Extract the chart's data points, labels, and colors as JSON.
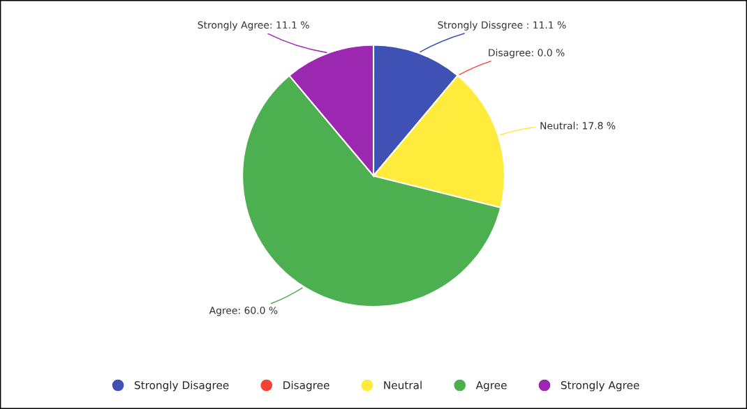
{
  "chart_data": {
    "type": "pie",
    "categories": [
      "Strongly Disagree",
      "Disagree",
      "Neutral",
      "Agree",
      "Strongly Agree"
    ],
    "values": [
      11.1,
      0.0,
      17.8,
      60.0,
      11.1
    ],
    "colors": [
      "#3f51b5",
      "#f44336",
      "#ffeb3b",
      "#4caf50",
      "#9c27b0"
    ],
    "value_labels": [
      "Strongly Dissgree : 11.1 %",
      "Disagree: 0.0 %",
      "Neutral: 17.8 %",
      "Agree: 60.0 %",
      "Strongly Agree: 11.1 %"
    ],
    "legend": "bottom"
  }
}
